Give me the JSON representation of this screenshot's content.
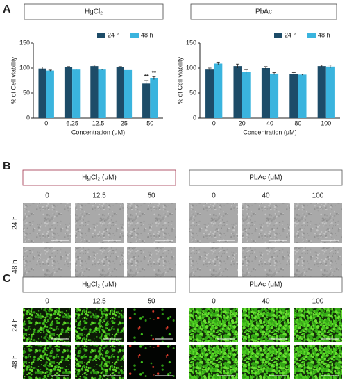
{
  "chart_data": [
    {
      "type": "bar",
      "title": "HgCl₂",
      "xlabel": "Concentration (μM)",
      "ylabel": "% of Cell viability",
      "categories": [
        "0",
        "6.25",
        "12.5",
        "25",
        "50"
      ],
      "series": [
        {
          "name": "24 h",
          "color": "#1d4c68",
          "values": [
            99,
            102,
            104,
            102,
            69
          ],
          "errors": [
            3,
            1,
            2,
            1,
            6
          ]
        },
        {
          "name": "48 h",
          "color": "#3ab4de",
          "values": [
            95,
            97,
            97,
            96,
            80
          ],
          "errors": [
            1,
            1,
            1,
            2,
            3
          ]
        }
      ],
      "annotations": [
        {
          "text": "**",
          "category": "50",
          "series": "24 h"
        },
        {
          "text": "**",
          "category": "50",
          "series": "48 h"
        }
      ],
      "ylim": [
        0,
        150
      ],
      "yticks": [
        0,
        50,
        100,
        150
      ],
      "legend": "upper right"
    },
    {
      "type": "bar",
      "title": "PbAc",
      "xlabel": "Concentration (μM)",
      "ylabel": "% of Cell viability",
      "categories": [
        "0",
        "20",
        "40",
        "80",
        "100"
      ],
      "series": [
        {
          "name": "24 h",
          "color": "#1d4c68",
          "values": [
            97,
            104,
            100,
            88,
            104
          ],
          "errors": [
            3,
            4,
            3,
            3,
            2
          ]
        },
        {
          "name": "48 h",
          "color": "#3ab4de",
          "values": [
            109,
            92,
            89,
            87,
            103
          ],
          "errors": [
            3,
            5,
            2,
            1,
            3
          ]
        }
      ],
      "ylim": [
        0,
        150
      ],
      "yticks": [
        0,
        50,
        100,
        150
      ],
      "legend": "upper right"
    }
  ],
  "panels": [
    {
      "label": "A"
    },
    {
      "label": "B",
      "rows": [
        "24 h",
        "48 h"
      ],
      "groups": [
        {
          "title": "HgCl₂ (μM)",
          "columns": [
            "0",
            "12.5",
            "50"
          ]
        },
        {
          "title": "PbAc (μM)",
          "columns": [
            "0",
            "40",
            "100"
          ]
        }
      ]
    },
    {
      "label": "C",
      "rows": [
        "24 h",
        "48 h"
      ],
      "groups": [
        {
          "title": "HgCl₂ (μM)",
          "columns": [
            "0",
            "12.5",
            "50"
          ]
        },
        {
          "title": "PbAc (μM)",
          "columns": [
            "0",
            "40",
            "100"
          ]
        }
      ]
    }
  ]
}
